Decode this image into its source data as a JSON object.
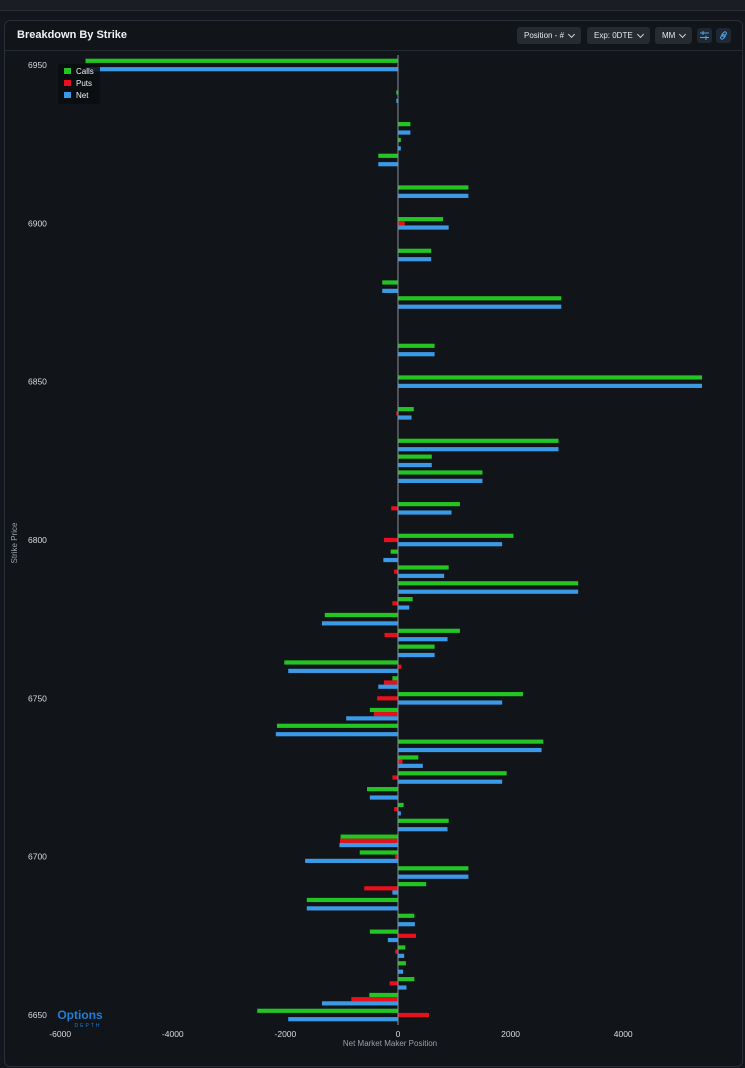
{
  "panel": {
    "title": "Breakdown By Strike",
    "controls": {
      "position": "Position - #",
      "expiry": "Exp: 0DTE",
      "mode": "MM"
    }
  },
  "icons": [
    "filter-icon",
    "link-icon",
    "chevron-down-icon"
  ],
  "logo": {
    "line1": "Options",
    "line2": "DEPTH"
  },
  "colors": {
    "calls": "#22c522",
    "puts": "#e8101b",
    "net": "#3a9ae6",
    "axis": "#8a9099",
    "text": "#d8dbe0"
  },
  "chart_data": {
    "type": "bar",
    "orientation": "horizontal",
    "xlabel": "Net Market Maker Position",
    "ylabel": "Strike Price",
    "xlim": [
      -6000,
      5600
    ],
    "xticks": [
      -6000,
      -4000,
      -2000,
      0,
      2000,
      4000
    ],
    "ylim": [
      6650,
      6950
    ],
    "yticks": [
      6650,
      6700,
      6750,
      6800,
      6850,
      6900,
      6950
    ],
    "legend": {
      "position": "top-left",
      "entries": [
        "Calls",
        "Puts",
        "Net"
      ]
    },
    "grid": false,
    "categories": [
      6950,
      6940,
      6930,
      6925,
      6920,
      6910,
      6900,
      6890,
      6880,
      6875,
      6870,
      6860,
      6850,
      6840,
      6830,
      6825,
      6820,
      6810,
      6800,
      6795,
      6790,
      6785,
      6780,
      6775,
      6770,
      6765,
      6760,
      6755,
      6750,
      6745,
      6740,
      6735,
      6730,
      6725,
      6720,
      6715,
      6710,
      6705,
      6700,
      6695,
      6690,
      6685,
      6680,
      6675,
      6670,
      6665,
      6660,
      6655,
      6650
    ],
    "series": [
      {
        "name": "Calls",
        "values": [
          -5550,
          -30,
          220,
          50,
          -350,
          1250,
          800,
          590,
          -280,
          2900,
          0,
          650,
          5400,
          280,
          2850,
          600,
          1500,
          1100,
          2050,
          -130,
          900,
          3200,
          260,
          -1300,
          1100,
          650,
          -2020,
          -100,
          2220,
          -500,
          -2150,
          2580,
          360,
          1930,
          -550,
          100,
          900,
          -1020,
          -680,
          1250,
          500,
          -1620,
          290,
          -500,
          130,
          140,
          290,
          -510,
          -2500
        ]
      },
      {
        "name": "Puts",
        "values": [
          0,
          0,
          0,
          0,
          0,
          0,
          120,
          0,
          0,
          0,
          0,
          0,
          0,
          -30,
          0,
          0,
          0,
          -120,
          -250,
          0,
          -70,
          0,
          -100,
          0,
          -240,
          0,
          60,
          -250,
          -370,
          -430,
          0,
          0,
          80,
          -100,
          0,
          -70,
          0,
          -1030,
          -50,
          0,
          -600,
          0,
          0,
          320,
          -50,
          0,
          -150,
          -830,
          550
        ]
      },
      {
        "name": "Net",
        "values": [
          -5550,
          -30,
          220,
          50,
          -350,
          1250,
          900,
          590,
          -280,
          2900,
          0,
          650,
          5400,
          240,
          2850,
          600,
          1500,
          950,
          1850,
          -260,
          820,
          3200,
          200,
          -1350,
          880,
          650,
          -1950,
          -350,
          1850,
          -920,
          -2170,
          2550,
          440,
          1850,
          -500,
          50,
          880,
          -1040,
          -1650,
          1250,
          -100,
          -1620,
          300,
          -180,
          110,
          90,
          150,
          -1350,
          -1950
        ]
      }
    ]
  }
}
